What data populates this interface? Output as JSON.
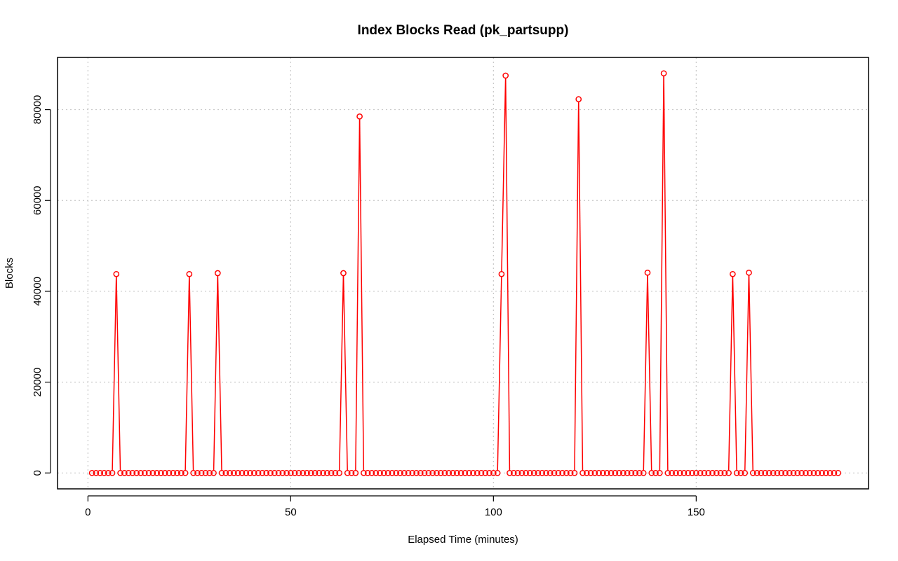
{
  "chart_data": {
    "type": "line",
    "title": "Index Blocks Read (pk_partsupp)",
    "xlabel": "Elapsed Time (minutes)",
    "ylabel": "Blocks",
    "xlim": [
      -7.5,
      192.5
    ],
    "ylim": [
      -3500,
      91500
    ],
    "xticks": [
      0,
      50,
      100,
      150
    ],
    "xtick_labels": [
      "0",
      "50",
      "100",
      "150"
    ],
    "yticks": [
      0,
      20000,
      40000,
      60000,
      80000
    ],
    "ytick_labels": [
      "0",
      "20000",
      "40000",
      "60000",
      "80000"
    ],
    "grid": true,
    "line_color": "#ff0000",
    "marker": "open-circle",
    "x_start": 1,
    "x_end": 185,
    "baseline": 0,
    "peaks": [
      {
        "x": 7,
        "y": 43800
      },
      {
        "x": 25,
        "y": 43800
      },
      {
        "x": 32,
        "y": 44000
      },
      {
        "x": 63,
        "y": 44000
      },
      {
        "x": 67,
        "y": 78500
      },
      {
        "x": 102,
        "y": 43800
      },
      {
        "x": 103,
        "y": 87500
      },
      {
        "x": 121,
        "y": 82300
      },
      {
        "x": 138,
        "y": 44100
      },
      {
        "x": 142,
        "y": 88000
      },
      {
        "x": 159,
        "y": 43800
      },
      {
        "x": 163,
        "y": 44100
      }
    ]
  }
}
